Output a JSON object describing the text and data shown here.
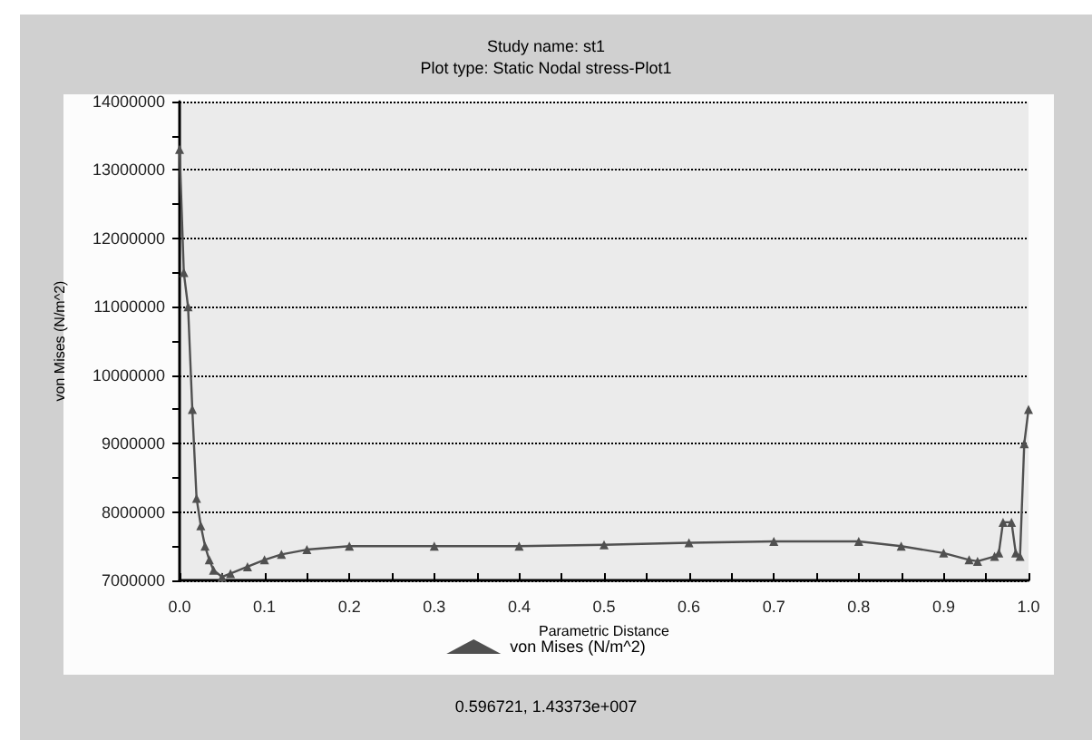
{
  "chart_data": {
    "type": "line",
    "title": "Study name: st1",
    "subtitle": "Plot type: Static Nodal stress-Plot1",
    "xlabel": "Parametric Distance",
    "ylabel": "von Mises (N/m^2)",
    "x": [
      0,
      0.005,
      0.01,
      0.015,
      0.02,
      0.025,
      0.03,
      0.035,
      0.04,
      0.05,
      0.06,
      0.08,
      0.1,
      0.12,
      0.15,
      0.2,
      0.3,
      0.4,
      0.5,
      0.6,
      0.7,
      0.8,
      0.85,
      0.9,
      0.93,
      0.94,
      0.96,
      0.965,
      0.97,
      0.98,
      0.985,
      0.99,
      0.995,
      1.0
    ],
    "series": [
      {
        "name": "von Mises (N/m^2)",
        "color": "#505050",
        "values": [
          13300000,
          11500000,
          11000000,
          9500000,
          8200000,
          7800000,
          7500000,
          7300000,
          7150000,
          7050000,
          7100000,
          7200000,
          7300000,
          7380000,
          7450000,
          7500000,
          7500000,
          7500000,
          7520000,
          7550000,
          7570000,
          7570000,
          7500000,
          7400000,
          7300000,
          7280000,
          7350000,
          7400000,
          7850000,
          7850000,
          7400000,
          7350000,
          9000000,
          9500000
        ]
      }
    ],
    "xlim": [
      0,
      1
    ],
    "xticks": [
      {
        "value": 0,
        "label": "0.0"
      },
      {
        "value": 0.1,
        "label": "0.1"
      },
      {
        "value": 0.2,
        "label": "0.2"
      },
      {
        "value": 0.3,
        "label": "0.3"
      },
      {
        "value": 0.4,
        "label": "0.4"
      },
      {
        "value": 0.5,
        "label": "0.5"
      },
      {
        "value": 0.6,
        "label": "0.6"
      },
      {
        "value": 0.7,
        "label": "0.7"
      },
      {
        "value": 0.8,
        "label": "0.8"
      },
      {
        "value": 0.9,
        "label": "0.9"
      },
      {
        "value": 1,
        "label": "1.0"
      }
    ],
    "ylim": [
      7000000,
      14000000
    ],
    "yticks": [
      7000000,
      8000000,
      9000000,
      10000000,
      11000000,
      12000000,
      13000000,
      14000000
    ],
    "grid": "y",
    "legend": "bottom",
    "marker": "triangle",
    "line_style": "solid",
    "annotations": [
      "0.596721, 1.43373e+007"
    ]
  }
}
